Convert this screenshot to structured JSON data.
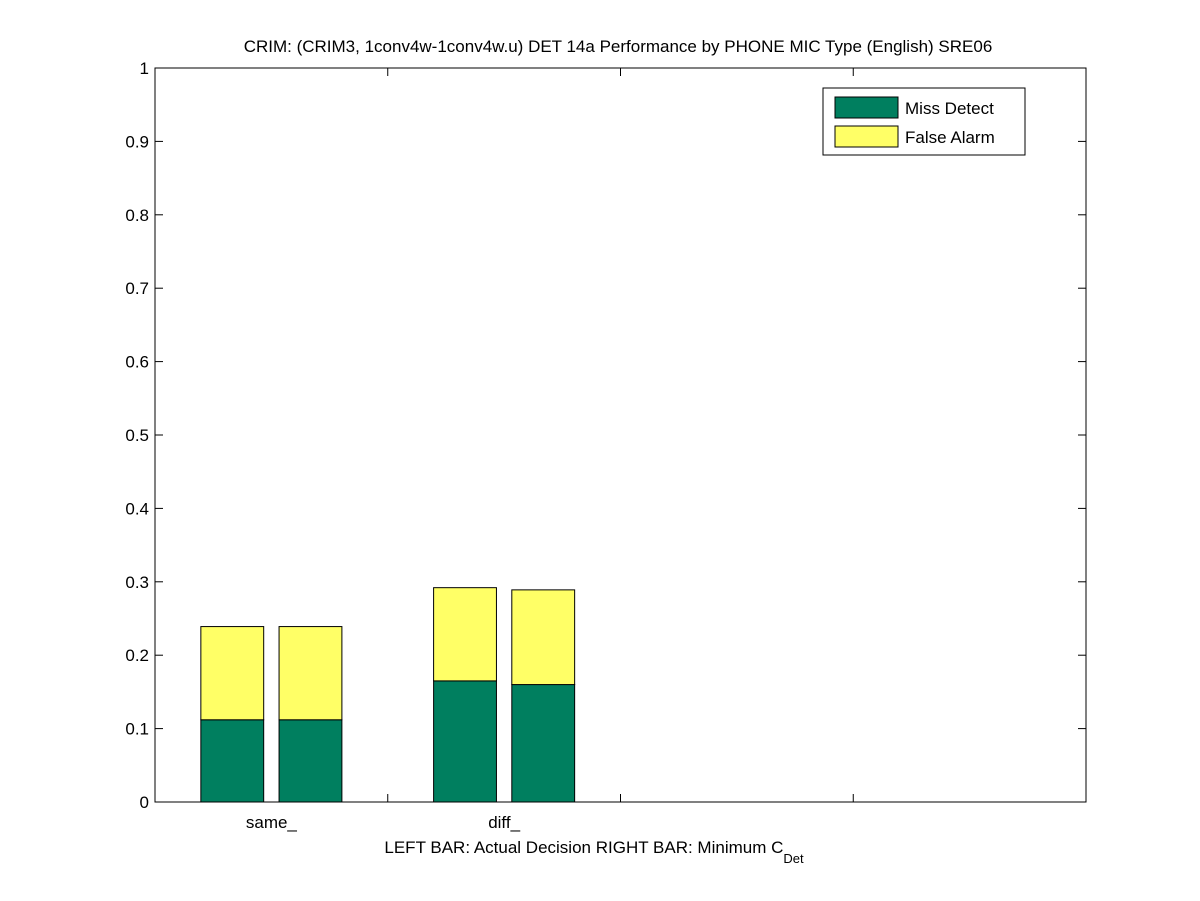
{
  "chart_data": {
    "type": "bar",
    "stacked": true,
    "title": "CRIM: (CRIM3, 1conv4w-1conv4w.u) DET 14a Performance by PHONE MIC Type (English) SRE06",
    "xlabel_main": "LEFT BAR: Actual Decision     RIGHT BAR: Minimum C",
    "xlabel_subscript": "Det",
    "categories": [
      "same_",
      "diff_"
    ],
    "bar_roles": [
      "Actual Decision",
      "Minimum C_Det"
    ],
    "series": [
      {
        "name": "Miss Detect",
        "color": "#007f5f",
        "values": [
          [
            0.112,
            0.112
          ],
          [
            0.165,
            0.16
          ]
        ]
      },
      {
        "name": "False Alarm",
        "color": "#ffff66",
        "values": [
          [
            0.127,
            0.127
          ],
          [
            0.127,
            0.129
          ]
        ]
      }
    ],
    "ylim": [
      0,
      1
    ],
    "yticks": [
      "0",
      "0.1",
      "0.2",
      "0.3",
      "0.4",
      "0.5",
      "0.6",
      "0.7",
      "0.8",
      "0.9",
      "1"
    ],
    "x_group_count": 4,
    "legend_position": "top-right",
    "grid": false
  }
}
